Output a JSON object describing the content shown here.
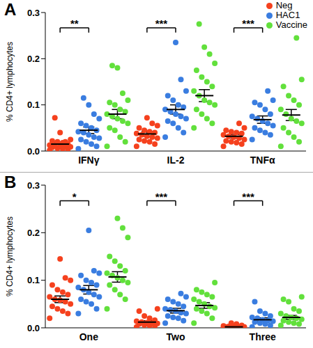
{
  "chart_data": [
    {
      "type": "scatter",
      "title": "A",
      "ylabel": "% CD4+ lymphocytes",
      "categories": [
        "IFNγ",
        "IL-2",
        "TNFα"
      ],
      "ylim": [
        0,
        0.3
      ],
      "yticks": [
        {
          "value": 0,
          "label": "0.0"
        },
        {
          "value": 0.1,
          "label": "0.1"
        },
        {
          "value": 0.2,
          "label": "0.2"
        },
        {
          "value": 0.3,
          "label": "0.3"
        }
      ],
      "legend": "top-right",
      "marker": "circle",
      "series": [
        {
          "name": "Neg",
          "color": "#f5411e",
          "values": [
            [
              0.002,
              0.004,
              0.005,
              0.006,
              0.008,
              0.009,
              0.01,
              0.011,
              0.012,
              0.013,
              0.015,
              0.018,
              0.02,
              0.022,
              0.025,
              0.02,
              0.04,
              0.072
            ],
            [
              0.01,
              0.015,
              0.02,
              0.022,
              0.025,
              0.028,
              0.03,
              0.032,
              0.035,
              0.038,
              0.04,
              0.042,
              0.045,
              0.05,
              0.055,
              0.06,
              0.072
            ],
            [
              0.01,
              0.015,
              0.018,
              0.02,
              0.022,
              0.025,
              0.028,
              0.03,
              0.032,
              0.035,
              0.038,
              0.04,
              0.042,
              0.045,
              0.05,
              0.06
            ]
          ],
          "mean": [
            0.015,
            0.037,
            0.032
          ],
          "sem": [
            0.004,
            0.005,
            0.004
          ]
        },
        {
          "name": "HAC1",
          "color": "#3a7de0",
          "values": [
            [
              0.005,
              0.01,
              0.015,
              0.02,
              0.025,
              0.028,
              0.03,
              0.035,
              0.04,
              0.042,
              0.045,
              0.05,
              0.055,
              0.06,
              0.07,
              0.08,
              0.1,
              0.115
            ],
            [
              0.03,
              0.04,
              0.05,
              0.06,
              0.065,
              0.07,
              0.075,
              0.08,
              0.085,
              0.09,
              0.095,
              0.1,
              0.11,
              0.12,
              0.13,
              0.155,
              0.235
            ],
            [
              0.025,
              0.035,
              0.04,
              0.045,
              0.05,
              0.055,
              0.06,
              0.065,
              0.07,
              0.075,
              0.08,
              0.09,
              0.1,
              0.105,
              0.11,
              0.13
            ]
          ],
          "mean": [
            0.045,
            0.09,
            0.068
          ],
          "sem": [
            0.007,
            0.01,
            0.008
          ]
        },
        {
          "name": "Vaccine",
          "color": "#62e03c",
          "values": [
            [
              0.01,
              0.02,
              0.03,
              0.045,
              0.05,
              0.06,
              0.065,
              0.07,
              0.075,
              0.08,
              0.085,
              0.09,
              0.1,
              0.105,
              0.11,
              0.125,
              0.18,
              0.185
            ],
            [
              0.05,
              0.06,
              0.07,
              0.08,
              0.09,
              0.1,
              0.105,
              0.11,
              0.12,
              0.13,
              0.14,
              0.15,
              0.16,
              0.175,
              0.19,
              0.21,
              0.225,
              0.275
            ],
            [
              0.01,
              0.02,
              0.03,
              0.04,
              0.05,
              0.06,
              0.065,
              0.07,
              0.08,
              0.09,
              0.1,
              0.11,
              0.12,
              0.14,
              0.155,
              0.245
            ]
          ],
          "mean": [
            0.08,
            0.12,
            0.078
          ],
          "sem": [
            0.01,
            0.013,
            0.012
          ]
        }
      ],
      "annotations": [
        {
          "category": "IFNγ",
          "text": "**",
          "between": [
            "Neg",
            "HAC1"
          ]
        },
        {
          "category": "IL-2",
          "text": "***",
          "between": [
            "Neg",
            "HAC1"
          ]
        },
        {
          "category": "TNFα",
          "text": "***",
          "between": [
            "Neg",
            "HAC1"
          ]
        }
      ]
    },
    {
      "type": "scatter",
      "title": "B",
      "ylabel": "% CD4+ lymphocytes",
      "categories": [
        "One",
        "Two",
        "Three"
      ],
      "ylim": [
        0,
        0.3
      ],
      "yticks": [
        {
          "value": 0,
          "label": "0.0"
        },
        {
          "value": 0.1,
          "label": "0.1"
        },
        {
          "value": 0.2,
          "label": "0.2"
        },
        {
          "value": 0.3,
          "label": "0.3"
        }
      ],
      "marker": "circle",
      "series": [
        {
          "name": "Neg",
          "color": "#f5411e",
          "values": [
            [
              0.02,
              0.03,
              0.035,
              0.04,
              0.045,
              0.05,
              0.055,
              0.058,
              0.06,
              0.065,
              0.07,
              0.075,
              0.08,
              0.09,
              0.1,
              0.105,
              0.145
            ],
            [
              0.002,
              0.004,
              0.005,
              0.006,
              0.008,
              0.009,
              0.01,
              0.011,
              0.012,
              0.014,
              0.016,
              0.02,
              0.025,
              0.035,
              0.04
            ],
            [
              0,
              0,
              0.001,
              0.001,
              0.002,
              0.002,
              0.002,
              0.003,
              0.003,
              0.004,
              0.005,
              0.008,
              0.01
            ]
          ],
          "mean": [
            0.06,
            0.012,
            0.002
          ],
          "sem": [
            0.007,
            0.003,
            0.001
          ]
        },
        {
          "name": "HAC1",
          "color": "#3a7de0",
          "values": [
            [
              0.03,
              0.04,
              0.05,
              0.055,
              0.06,
              0.065,
              0.07,
              0.075,
              0.08,
              0.085,
              0.09,
              0.095,
              0.1,
              0.11,
              0.115,
              0.12,
              0.205
            ],
            [
              0.01,
              0.015,
              0.02,
              0.022,
              0.025,
              0.03,
              0.032,
              0.035,
              0.038,
              0.04,
              0.045,
              0.05,
              0.055,
              0.06,
              0.065,
              0.072
            ],
            [
              0.002,
              0.005,
              0.008,
              0.01,
              0.012,
              0.014,
              0.015,
              0.017,
              0.02,
              0.022,
              0.025,
              0.03,
              0.035,
              0.055
            ]
          ],
          "mean": [
            0.08,
            0.036,
            0.017
          ],
          "sem": [
            0.009,
            0.005,
            0.004
          ]
        },
        {
          "name": "Vaccine",
          "color": "#62e03c",
          "values": [
            [
              0.04,
              0.06,
              0.07,
              0.08,
              0.09,
              0.095,
              0.1,
              0.105,
              0.11,
              0.115,
              0.12,
              0.13,
              0.14,
              0.15,
              0.19,
              0.21,
              0.23
            ],
            [
              0.01,
              0.02,
              0.03,
              0.035,
              0.04,
              0.042,
              0.045,
              0.05,
              0.055,
              0.06,
              0.065,
              0.07,
              0.075,
              0.08,
              0.095
            ],
            [
              0.005,
              0.008,
              0.01,
              0.012,
              0.015,
              0.018,
              0.02,
              0.022,
              0.025,
              0.03,
              0.035,
              0.04,
              0.055,
              0.06,
              0.065
            ]
          ],
          "mean": [
            0.107,
            0.047,
            0.022
          ],
          "sem": [
            0.011,
            0.006,
            0.004
          ]
        }
      ],
      "annotations": [
        {
          "category": "One",
          "text": "*",
          "between": [
            "Neg",
            "HAC1"
          ]
        },
        {
          "category": "Two",
          "text": "***",
          "between": [
            "Neg",
            "HAC1"
          ]
        },
        {
          "category": "Three",
          "text": "***",
          "between": [
            "Neg",
            "HAC1"
          ]
        }
      ]
    }
  ]
}
